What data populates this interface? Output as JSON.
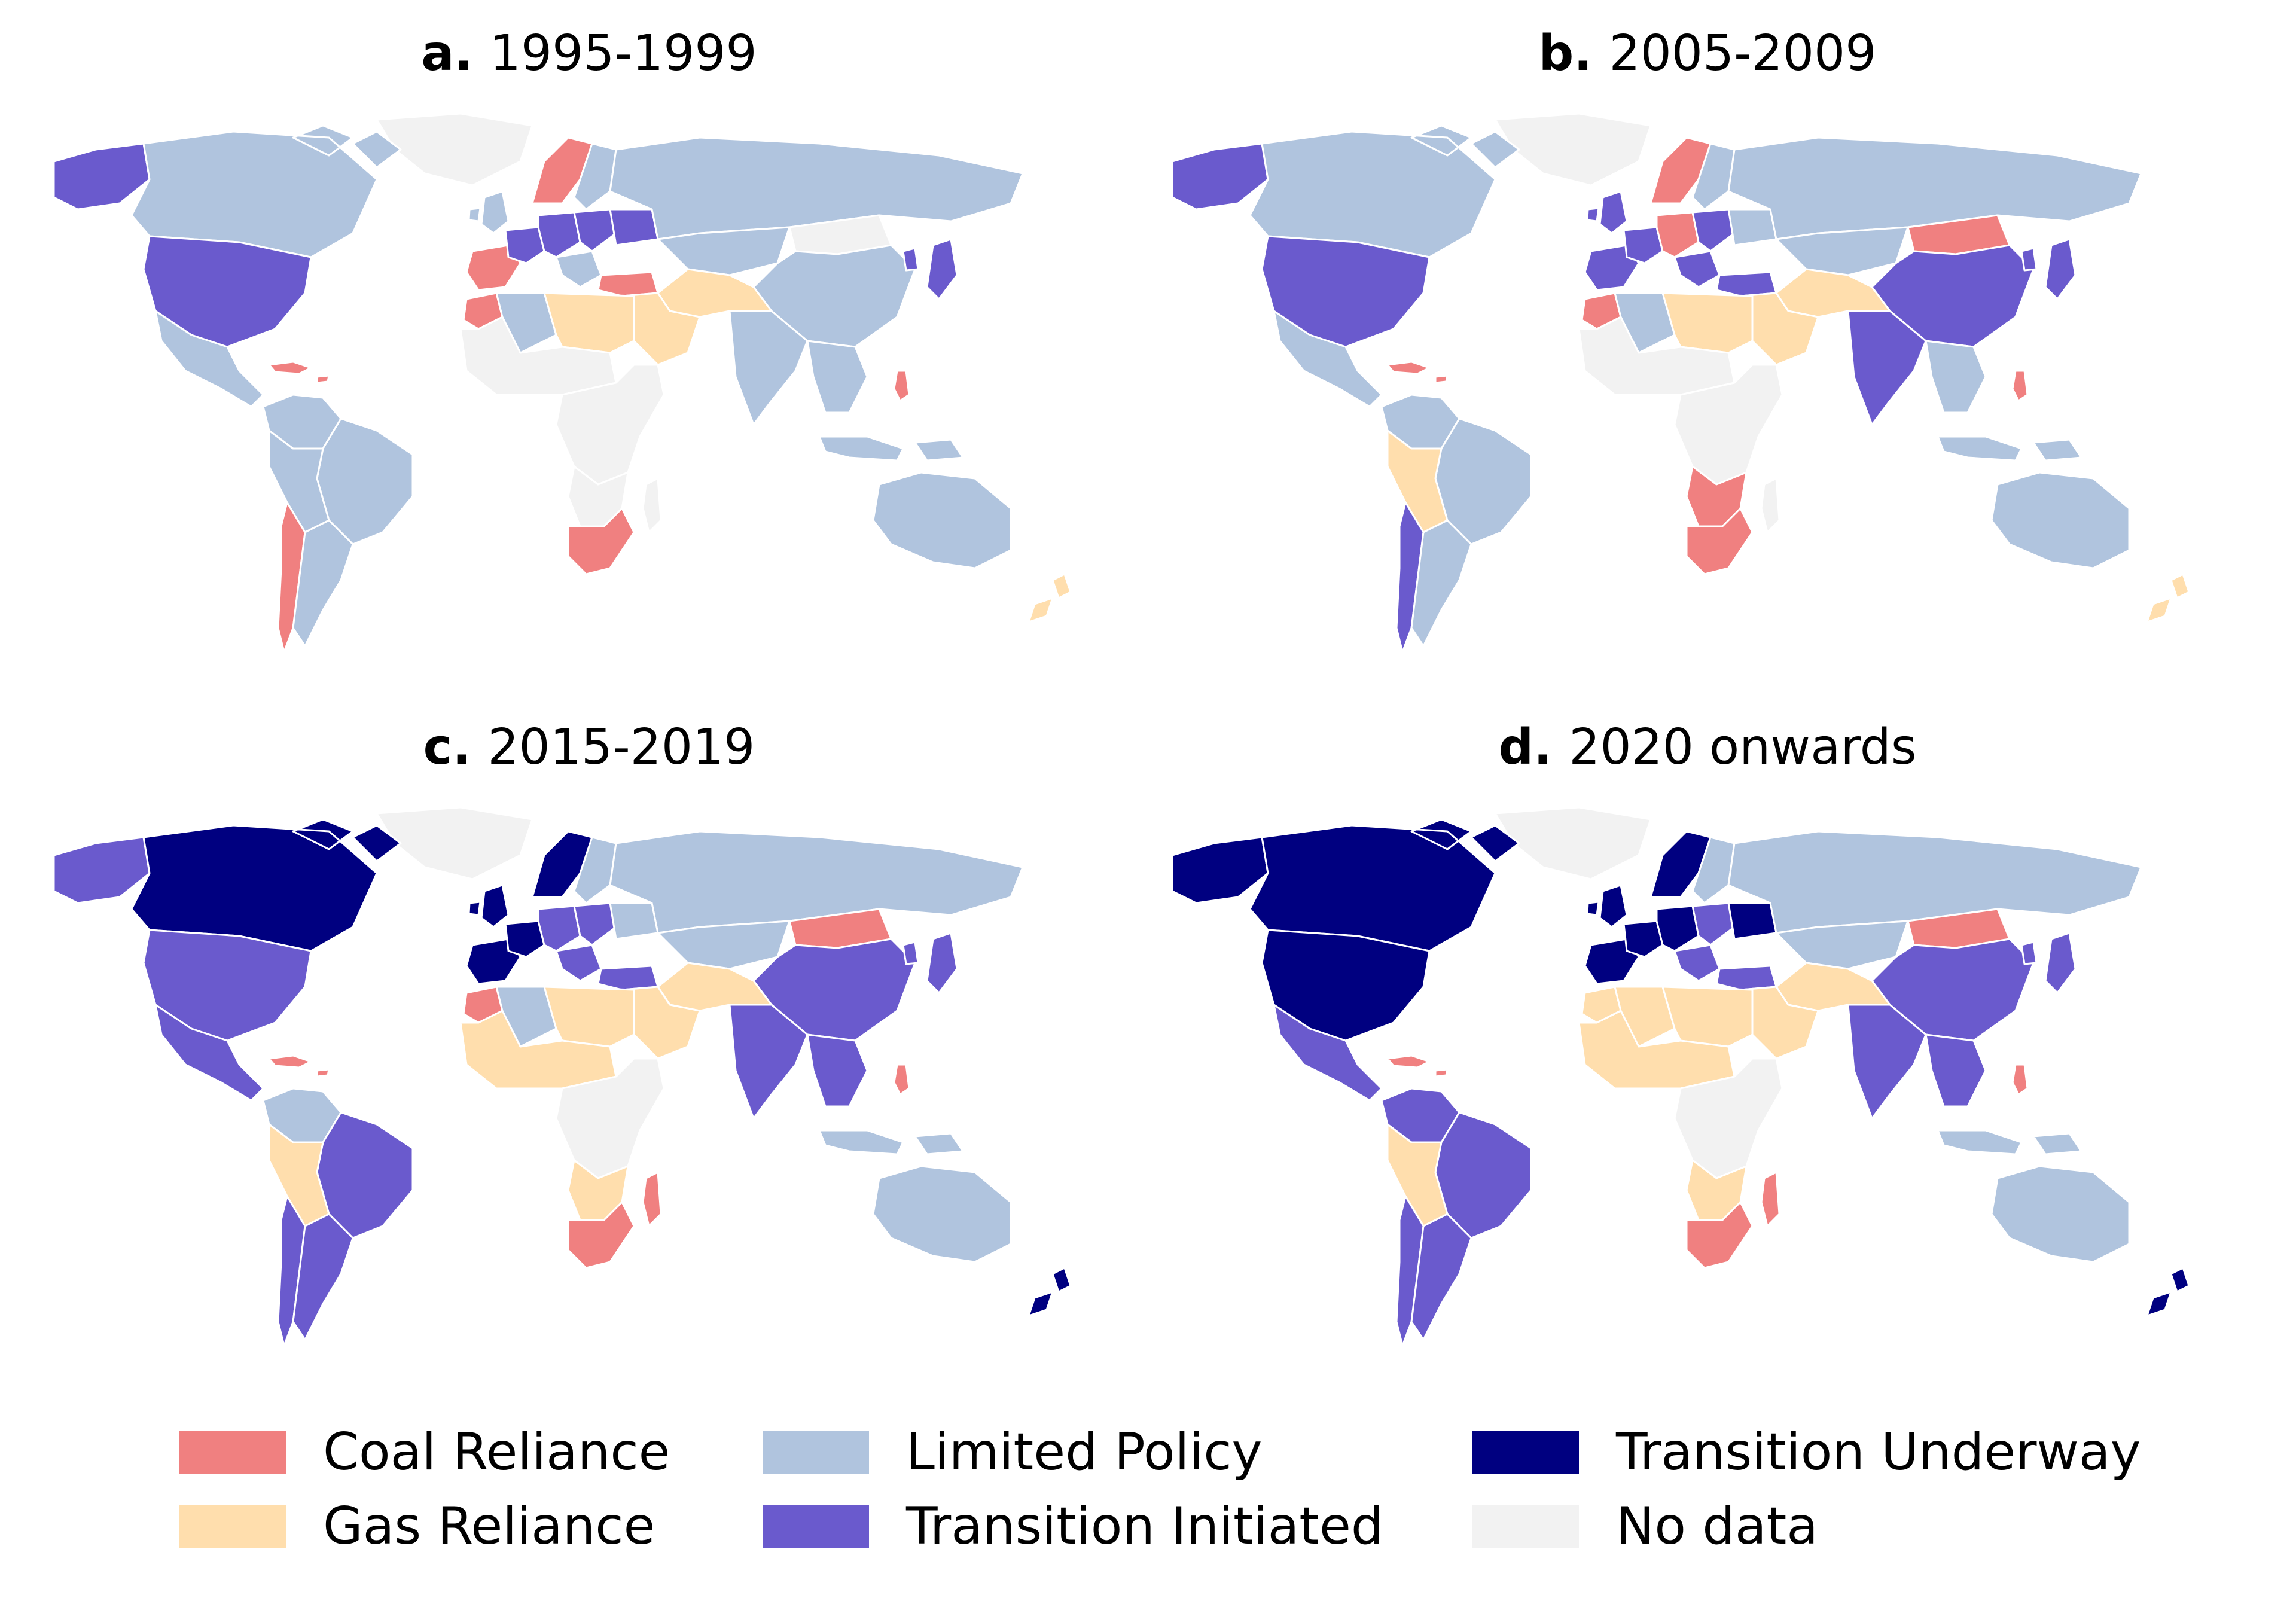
{
  "colors": {
    "coal": "#f08080",
    "gas": "#ffdead",
    "limited": "#b0c4de",
    "initiated": "#6a5acd",
    "underway": "#000080",
    "nodata": "#f2f2f2",
    "border": "#ffffff"
  },
  "panels": [
    {
      "letter": "a.",
      "period": "1995-1999",
      "regions": {
        "alaska": "initiated",
        "canada": "limited",
        "greenland": "nodata",
        "usa": "initiated",
        "mexico_ca": "limited",
        "caribbean": "coal",
        "colombia_ven": "limited",
        "brazil": "limited",
        "peru_bol": "limited",
        "chile": "coal",
        "argentina": "limited",
        "iberia": "coal",
        "uk_ireland": "limited",
        "france": "initiated",
        "central_eu": "initiated",
        "scandinavia": "coal",
        "finland_baltic": "limited",
        "eastern_eu": "initiated",
        "balkans": "limited",
        "turkey": "coal",
        "ukraine_belarus": "initiated",
        "russia": "limited",
        "kazakh_central": "limited",
        "mongolia": "nodata",
        "china": "limited",
        "japan_korea": "initiated",
        "india": "limited",
        "pakistan_iran": "gas",
        "arabia": "gas",
        "se_asia": "limited",
        "indonesia": "limited",
        "philippines": "coal",
        "morocco": "coal",
        "algeria": "limited",
        "libya_egypt": "gas",
        "sahel_west_af": "nodata",
        "central_east_af": "nodata",
        "southern_af": "nodata",
        "south_africa": "coal",
        "madagascar": "nodata",
        "australia": "limited",
        "new_zealand": "gas"
      }
    },
    {
      "letter": "b.",
      "period": "2005-2009",
      "regions": {
        "alaska": "initiated",
        "canada": "limited",
        "greenland": "nodata",
        "usa": "initiated",
        "mexico_ca": "limited",
        "caribbean": "coal",
        "colombia_ven": "limited",
        "brazil": "limited",
        "peru_bol": "gas",
        "chile": "initiated",
        "argentina": "limited",
        "iberia": "initiated",
        "uk_ireland": "initiated",
        "france": "initiated",
        "central_eu": "coal",
        "scandinavia": "coal",
        "finland_baltic": "limited",
        "eastern_eu": "initiated",
        "balkans": "initiated",
        "turkey": "initiated",
        "ukraine_belarus": "limited",
        "russia": "limited",
        "kazakh_central": "limited",
        "mongolia": "coal",
        "china": "initiated",
        "japan_korea": "initiated",
        "india": "initiated",
        "pakistan_iran": "gas",
        "arabia": "gas",
        "se_asia": "limited",
        "indonesia": "limited",
        "philippines": "coal",
        "morocco": "coal",
        "algeria": "limited",
        "libya_egypt": "gas",
        "sahel_west_af": "nodata",
        "central_east_af": "nodata",
        "southern_af": "coal",
        "south_africa": "coal",
        "madagascar": "nodata",
        "australia": "limited",
        "new_zealand": "gas"
      }
    },
    {
      "letter": "c.",
      "period": "2015-2019",
      "regions": {
        "alaska": "initiated",
        "canada": "underway",
        "greenland": "nodata",
        "usa": "initiated",
        "mexico_ca": "initiated",
        "caribbean": "coal",
        "colombia_ven": "limited",
        "brazil": "initiated",
        "peru_bol": "gas",
        "chile": "initiated",
        "argentina": "initiated",
        "iberia": "underway",
        "uk_ireland": "underway",
        "france": "underway",
        "central_eu": "initiated",
        "scandinavia": "underway",
        "finland_baltic": "limited",
        "eastern_eu": "initiated",
        "balkans": "initiated",
        "turkey": "initiated",
        "ukraine_belarus": "limited",
        "russia": "limited",
        "kazakh_central": "limited",
        "mongolia": "coal",
        "china": "initiated",
        "japan_korea": "initiated",
        "india": "initiated",
        "pakistan_iran": "gas",
        "arabia": "gas",
        "se_asia": "initiated",
        "indonesia": "limited",
        "philippines": "coal",
        "morocco": "coal",
        "algeria": "limited",
        "libya_egypt": "gas",
        "sahel_west_af": "gas",
        "central_east_af": "nodata",
        "southern_af": "gas",
        "south_africa": "coal",
        "madagascar": "coal",
        "australia": "limited",
        "new_zealand": "underway"
      }
    },
    {
      "letter": "d.",
      "period": "2020 onwards",
      "regions": {
        "alaska": "underway",
        "canada": "underway",
        "greenland": "nodata",
        "usa": "underway",
        "mexico_ca": "initiated",
        "caribbean": "coal",
        "colombia_ven": "initiated",
        "brazil": "initiated",
        "peru_bol": "gas",
        "chile": "initiated",
        "argentina": "initiated",
        "iberia": "underway",
        "uk_ireland": "underway",
        "france": "underway",
        "central_eu": "underway",
        "scandinavia": "underway",
        "finland_baltic": "limited",
        "eastern_eu": "initiated",
        "balkans": "initiated",
        "turkey": "initiated",
        "ukraine_belarus": "underway",
        "russia": "limited",
        "kazakh_central": "limited",
        "mongolia": "coal",
        "china": "initiated",
        "japan_korea": "initiated",
        "india": "initiated",
        "pakistan_iran": "gas",
        "arabia": "gas",
        "se_asia": "initiated",
        "indonesia": "limited",
        "philippines": "coal",
        "morocco": "gas",
        "algeria": "gas",
        "libya_egypt": "gas",
        "sahel_west_af": "gas",
        "central_east_af": "nodata",
        "southern_af": "gas",
        "south_africa": "coal",
        "madagascar": "coal",
        "australia": "limited",
        "new_zealand": "underway"
      }
    }
  ],
  "legend": [
    {
      "key": "coal",
      "label": "Coal Reliance"
    },
    {
      "key": "gas",
      "label": "Gas Reliance"
    },
    {
      "key": "limited",
      "label": "Limited Policy"
    },
    {
      "key": "initiated",
      "label": "Transition Initiated"
    },
    {
      "key": "underway",
      "label": "Transition Underway"
    },
    {
      "key": "nodata",
      "label": "No data"
    }
  ]
}
